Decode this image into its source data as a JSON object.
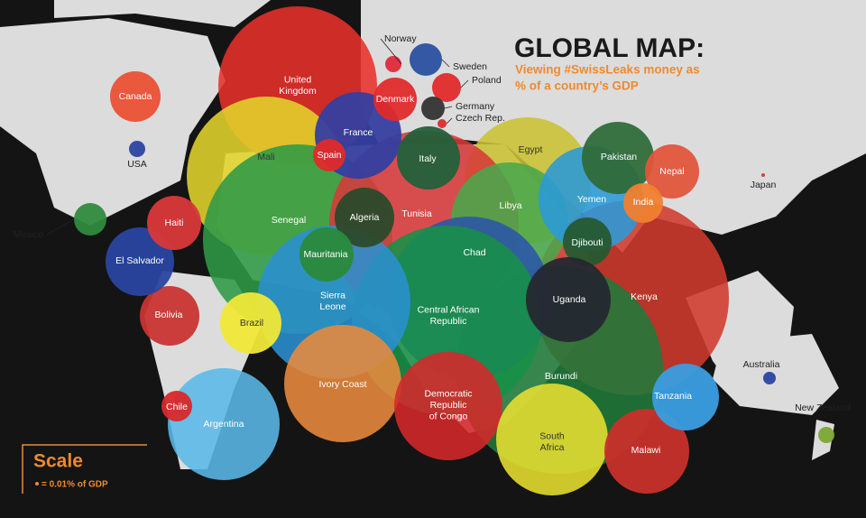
{
  "title": "GLOBAL MAP:",
  "subtitle": [
    "Viewing #SwissLeaks money as",
    "% of a country’s GDP"
  ],
  "scale": {
    "title": "Scale",
    "note": "= 0.01% of GDP"
  },
  "countries": [
    {
      "label": [
        "United",
        "Kingdom"
      ],
      "color": "#e8302a"
    },
    {
      "label": [
        "Egypt"
      ],
      "color": "#c9c232"
    },
    {
      "label": [
        "Kenya"
      ],
      "color": "#d03a2c"
    },
    {
      "label": [
        "Burundi"
      ],
      "color": "#1f7a3a"
    },
    {
      "label": [
        "Mali"
      ],
      "color": "#e2d42c"
    },
    {
      "label": [
        "Senegal"
      ],
      "color": "#2e9a45"
    },
    {
      "label": [
        "Tunisia"
      ],
      "color": "#d6393a"
    },
    {
      "label": [
        "Libya"
      ],
      "color": "#4aa74c"
    },
    {
      "label": [
        "Chad"
      ],
      "color": "#2a55a8"
    },
    {
      "label": [
        "Central African",
        "Republic"
      ],
      "color": "#179148"
    },
    {
      "label": [
        "Sierra",
        "Leone"
      ],
      "color": "#2a8fd0"
    },
    {
      "label": [
        "France"
      ],
      "color": "#353ea0"
    },
    {
      "label": [
        "Yemen"
      ],
      "color": "#2a9ad8"
    },
    {
      "label": [
        "Pakistan"
      ],
      "color": "#2f6b3a"
    },
    {
      "label": [
        "Nepal"
      ],
      "color": "#e0553a"
    },
    {
      "label": [
        "India"
      ],
      "color": "#f08030"
    },
    {
      "label": [
        "Djibouti"
      ],
      "color": "#265a30"
    },
    {
      "label": [
        "Uganda"
      ],
      "color": "#252830"
    },
    {
      "label": [
        "Italy"
      ],
      "color": "#23603a"
    },
    {
      "label": [
        "Algeria"
      ],
      "color": "#2b4a2a"
    },
    {
      "label": [
        "Mauritania"
      ],
      "color": "#2a8a3a"
    },
    {
      "label": [
        "Spain"
      ],
      "color": "#e02a2a"
    },
    {
      "label": [
        "Ivory Coast"
      ],
      "color": "#ea8a3c"
    },
    {
      "label": [
        "Democratic",
        "Republic",
        "of Congo"
      ],
      "color": "#d6282a"
    },
    {
      "label": [
        "South",
        "Africa"
      ],
      "color": "#e8e030"
    },
    {
      "label": [
        "Malawi"
      ],
      "color": "#c8302a"
    },
    {
      "label": [
        "Tanzania"
      ],
      "color": "#3a9ee0"
    },
    {
      "label": [
        "Brazil"
      ],
      "color": "#f0e838"
    },
    {
      "label": [
        "Argentina"
      ],
      "color": "#5ab8e8"
    },
    {
      "label": [
        "Chile"
      ],
      "color": "#d8282a"
    },
    {
      "label": [
        "Bolivia"
      ],
      "color": "#c83430"
    },
    {
      "label": [
        "El Salvador"
      ],
      "color": "#2a44a0"
    },
    {
      "label": [
        "Haiti"
      ],
      "color": "#d8383a"
    },
    {
      "label": [
        "Mexico"
      ],
      "color": "#2e8a3c"
    },
    {
      "label": [
        "USA"
      ],
      "color": "#2a44a0"
    },
    {
      "label": [
        "Canada"
      ],
      "color": "#ea5035"
    },
    {
      "label": [
        "Denmark"
      ],
      "color": "#e02a2a"
    },
    {
      "label": [
        "Norway"
      ],
      "color": "#e02a3a"
    },
    {
      "label": [
        "Sweden"
      ],
      "color": "#2a50a0"
    },
    {
      "label": [
        "Poland"
      ],
      "color": "#e02a2a"
    },
    {
      "label": [
        "Germany"
      ],
      "color": "#333333"
    },
    {
      "label": [
        "Czech Rep."
      ],
      "color": "#e02a2a"
    },
    {
      "label": [
        "Japan"
      ],
      "color": "#d8382a"
    },
    {
      "label": [
        "Australia"
      ],
      "color": "#2a44a0"
    },
    {
      "label": [
        "New Zealand"
      ],
      "color": "#7aa830"
    }
  ]
}
